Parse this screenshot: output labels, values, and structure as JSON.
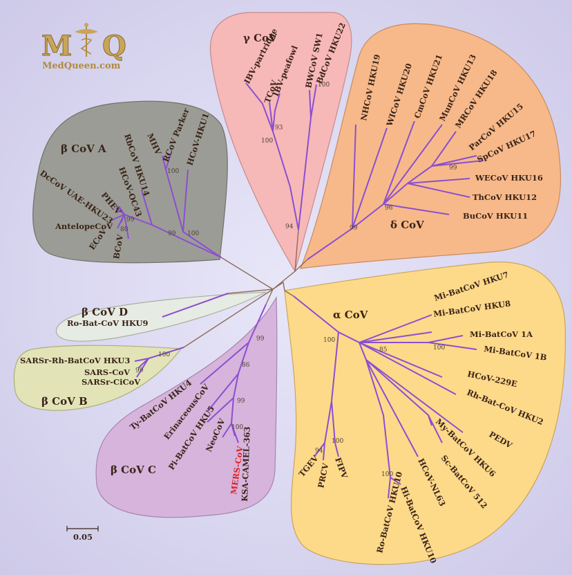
{
  "logo": {
    "letter_left": "M",
    "letter_right": "Q",
    "url": "MedQueen.com"
  },
  "scale_bar": "0.05",
  "clades": {
    "gamma": {
      "label": "γ CoV",
      "color": "#f7b8b8",
      "leaves": [
        "IBV-partridge",
        "TCoV",
        "IBV-peafowl",
        "BWCoV SW1",
        "BdCoV HKU22"
      ],
      "bootstraps": [
        "93",
        "100",
        "100",
        "94"
      ]
    },
    "delta": {
      "label": "δ CoV",
      "color": "#f7b98a",
      "leaves": [
        "NHCoV HKU19",
        "WICoV HKU20",
        "CmCoV HKU21",
        "MunCoV HKU13",
        "MRCoV HKU18",
        "ParCoV HKU15",
        "SpCoV HKU17",
        "WECoV HKU16",
        "ThCoV HKU12",
        "BuCoV HKU11"
      ],
      "bootstraps": [
        "99",
        "96",
        "99"
      ]
    },
    "beta_a": {
      "label": "β CoV A",
      "color": "#9c9c96",
      "leaves": [
        "DcCoV UAE-HKU23",
        "PHEV",
        "HCoV-OC43",
        "RbCoV HKU14",
        "MHV",
        "RCoV Parker",
        "HCoV-HKU1",
        "AntelopeCoV",
        "ECoV",
        "BCoV"
      ],
      "bootstraps": [
        "99",
        "80",
        "99",
        "100",
        "100"
      ]
    },
    "beta_d": {
      "label": "β CoV D",
      "color": "#e6ebe4",
      "leaves": [
        "Ro-Bat-CoV HKU9"
      ]
    },
    "beta_b": {
      "label": "β CoV B",
      "color": "#e2e4b8",
      "leaves": [
        "SARSr-Rh-BatCoV HKU3",
        "SARS-CoV",
        "SARSr-CiCoV"
      ],
      "bootstraps": [
        "100",
        "99"
      ]
    },
    "beta_c": {
      "label": "β CoV C",
      "color": "#d6b4dc",
      "leaves": [
        "Ty-BatCoV HKU4",
        "ErinaceousCoV",
        "Pi-BatCoV HKU5",
        "NeoCoV",
        "MERS-CoV",
        "KSA-CAMEL-363"
      ],
      "highlight_leaf": "MERS-CoV",
      "highlight_color": "#e02020",
      "bootstraps": [
        "99",
        "86",
        "99",
        "100"
      ]
    },
    "alpha": {
      "label": "α CoV",
      "color": "#fdd98a",
      "leaves": [
        "Mi-BatCoV HKU7",
        "Mi-BatCoV HKU8",
        "Mi-BatCoV 1A",
        "Mi-BatCoV 1B",
        "HCoV-229E",
        "Rh-Bat-CoV HKU2",
        "PEDV",
        "My-BatCoV HKU6",
        "Sc-BatCoV 512",
        "HCoV-NL63",
        "Hi-BatCoV HKU10",
        "Ro-BatCoV HKU10",
        "TGEV",
        "PRCV",
        "FIPV"
      ],
      "bootstraps": [
        "100",
        "85",
        "100",
        "94",
        "100",
        "100"
      ]
    }
  }
}
